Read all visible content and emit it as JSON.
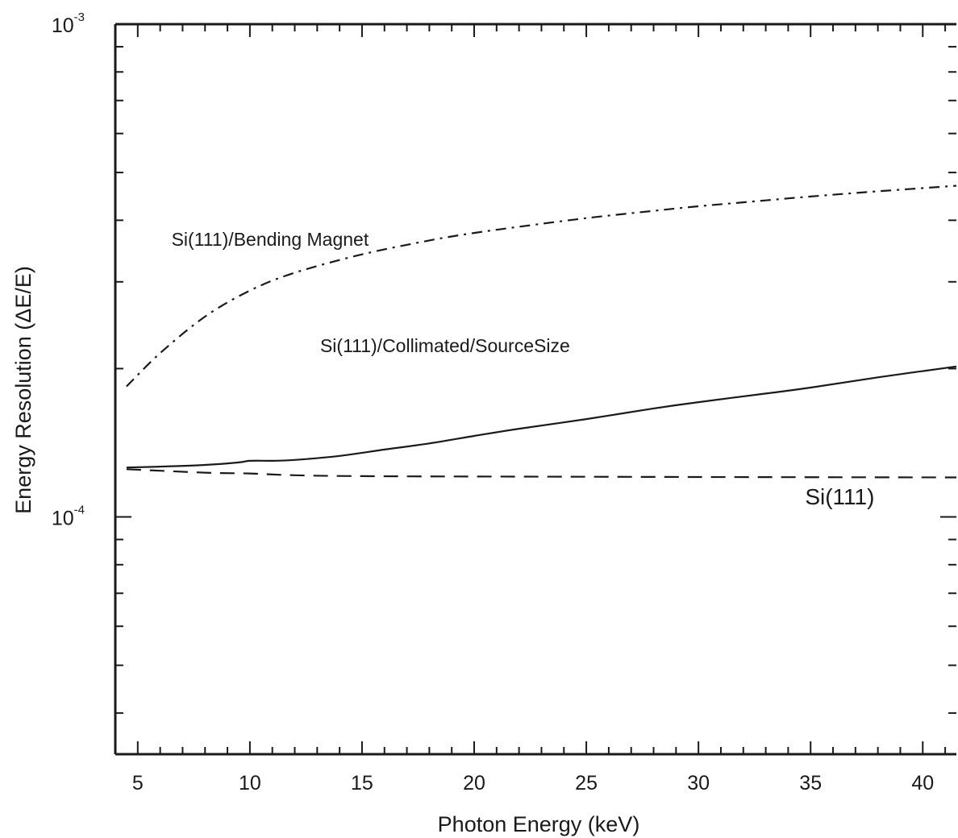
{
  "chart_data": {
    "type": "line",
    "xlabel": "Photon Energy (keV)",
    "ylabel": "Energy Resolution (ΔE/E)",
    "xlim": [
      4,
      41.5
    ],
    "ylim": [
      3.3e-05,
      0.001
    ],
    "yscale": "log",
    "grid": false,
    "x_ticks": [
      5,
      10,
      15,
      20,
      25,
      30,
      35,
      40
    ],
    "x_tick_labels": [
      "5",
      "10",
      "15",
      "20",
      "25",
      "30",
      "35",
      "40"
    ],
    "y_ticks": [
      {
        "value": 0.001,
        "base": "10",
        "exp": "-3"
      },
      {
        "value": 0.0001,
        "base": "10",
        "exp": "-4"
      }
    ],
    "series": [
      {
        "name": "Si(111)/Bending Magnet",
        "style": "dashdot",
        "x": [
          4.5,
          6,
          8,
          10,
          12,
          15,
          18,
          20,
          22,
          25,
          28,
          30,
          33,
          35,
          38,
          41.5
        ],
        "y": [
          0.000184,
          0.000215,
          0.000255,
          0.000288,
          0.000313,
          0.000341,
          0.000364,
          0.000377,
          0.000388,
          0.000404,
          0.000418,
          0.000427,
          0.000439,
          0.000447,
          0.000458,
          0.00047
        ]
      },
      {
        "name": "Si(111)/Collimated/SourceSize",
        "style": "solid",
        "x": [
          4.5,
          6,
          8,
          9.5,
          10,
          11,
          12,
          14,
          16,
          18,
          20,
          22,
          25,
          28,
          30,
          33,
          35,
          38,
          41.5
        ],
        "y": [
          0.000126,
          0.0001265,
          0.0001275,
          0.000129,
          0.00013,
          0.00013,
          0.0001305,
          0.000133,
          0.000137,
          0.000141,
          0.000146,
          0.000151,
          0.000158,
          0.000166,
          0.000171,
          0.000178,
          0.000183,
          0.000192,
          0.000202
        ]
      },
      {
        "name": "Si(111)",
        "style": "dashed",
        "x": [
          4.5,
          8,
          10,
          12,
          15,
          20,
          30,
          41.5
        ],
        "y": [
          0.000125,
          0.000123,
          0.0001225,
          0.0001215,
          0.000121,
          0.0001208,
          0.0001205,
          0.0001203
        ]
      }
    ],
    "annotations": [
      {
        "text": "Si(111)/Bending Magnet",
        "x": 10.9,
        "y": 0.000355
      },
      {
        "text": "Si(111)/Collimated/SourceSize",
        "x": 18.7,
        "y": 0.000216
      },
      {
        "text": "Si(111)",
        "x": 36.3,
        "y": 0.000106
      }
    ]
  }
}
